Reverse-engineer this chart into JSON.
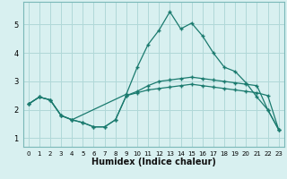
{
  "title": "",
  "xlabel": "Humidex (Indice chaleur)",
  "bg_color": "#d8f0f0",
  "line_color": "#1a7a6e",
  "grid_color": "#b0d8d8",
  "spine_color": "#7ab8b8",
  "x_ticks": [
    0,
    1,
    2,
    3,
    4,
    5,
    6,
    7,
    8,
    9,
    10,
    11,
    12,
    13,
    14,
    15,
    16,
    17,
    18,
    19,
    20,
    21,
    22,
    23
  ],
  "y_ticks": [
    1,
    2,
    3,
    4,
    5
  ],
  "ylim": [
    0.7,
    5.8
  ],
  "xlim": [
    -0.5,
    23.5
  ],
  "series": [
    {
      "x": [
        0,
        1,
        2,
        3,
        4,
        9,
        10,
        11,
        12,
        13,
        14,
        15,
        16,
        17,
        18,
        19,
        20,
        21,
        22,
        23
      ],
      "y": [
        2.2,
        2.45,
        2.35,
        1.8,
        1.65,
        2.55,
        3.5,
        4.3,
        4.8,
        5.45,
        4.85,
        5.05,
        4.6,
        4.0,
        3.5,
        3.35,
        2.95,
        2.45,
        2.0,
        1.3
      ]
    },
    {
      "x": [
        0,
        1,
        2,
        3,
        4,
        5,
        6,
        7,
        8,
        9,
        10,
        11,
        12,
        13,
        14,
        15,
        16,
        17,
        18,
        19,
        20,
        21,
        22,
        23
      ],
      "y": [
        2.2,
        2.45,
        2.35,
        1.8,
        1.65,
        1.55,
        1.4,
        1.4,
        1.65,
        2.5,
        2.65,
        2.85,
        3.0,
        3.05,
        3.1,
        3.15,
        3.1,
        3.05,
        3.0,
        2.95,
        2.9,
        2.85,
        2.0,
        1.3
      ]
    },
    {
      "x": [
        0,
        1,
        2,
        3,
        4,
        5,
        6,
        7,
        8,
        9,
        10,
        11,
        12,
        13,
        14,
        15,
        16,
        17,
        18,
        19,
        20,
        21,
        22,
        23
      ],
      "y": [
        2.2,
        2.45,
        2.35,
        1.8,
        1.65,
        1.55,
        1.4,
        1.4,
        1.65,
        2.5,
        2.6,
        2.7,
        2.75,
        2.8,
        2.85,
        2.9,
        2.85,
        2.8,
        2.75,
        2.7,
        2.65,
        2.6,
        2.5,
        1.3
      ]
    }
  ]
}
